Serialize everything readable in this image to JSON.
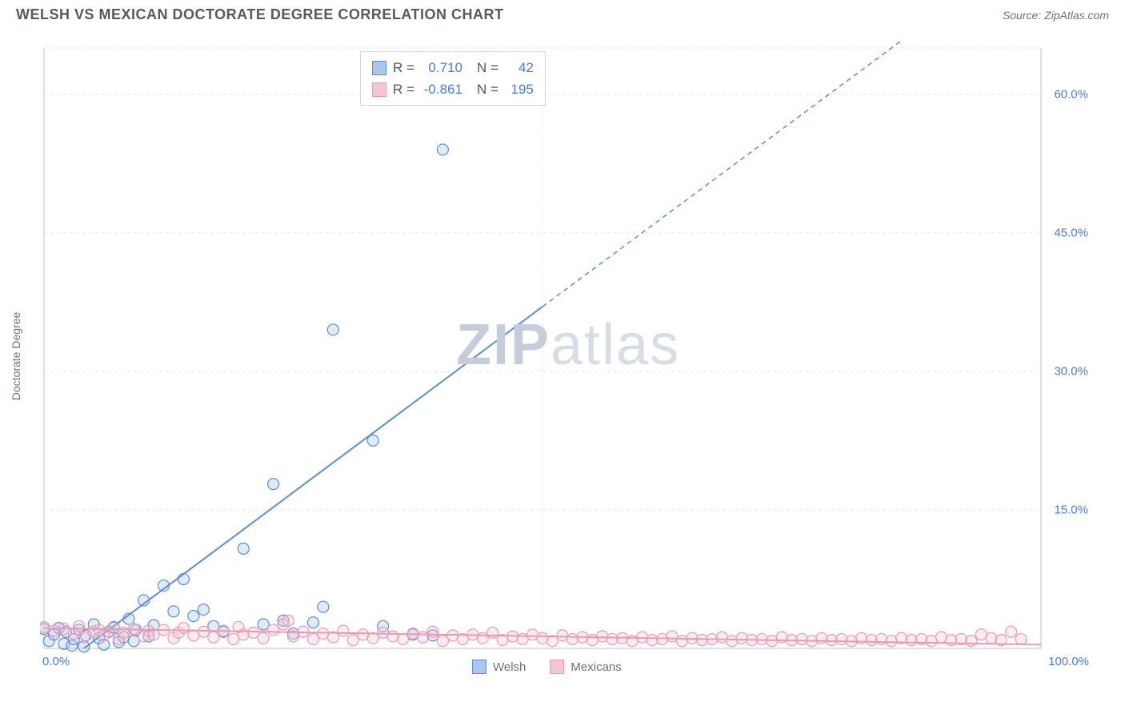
{
  "title": "WELSH VS MEXICAN DOCTORATE DEGREE CORRELATION CHART",
  "source": "Source: ZipAtlas.com",
  "y_axis_label": "Doctorate Degree",
  "watermark": {
    "zip": "ZIP",
    "atlas": "atlas"
  },
  "chart": {
    "type": "scatter",
    "xlim": [
      0,
      100
    ],
    "ylim": [
      0,
      65
    ],
    "xtick_labels": [
      {
        "pos": 0,
        "label": "0.0%"
      },
      {
        "pos": 100,
        "label": "100.0%"
      }
    ],
    "ytick_labels": [
      {
        "pos": 15,
        "label": "15.0%"
      },
      {
        "pos": 30,
        "label": "30.0%"
      },
      {
        "pos": 45,
        "label": "45.0%"
      },
      {
        "pos": 60,
        "label": "60.0%"
      }
    ],
    "grid_color": "#e5e7eb",
    "grid_dash": "4 4",
    "axis_color": "#c0c0c0",
    "background_color": "#ffffff",
    "marker_radius": 7,
    "marker_fill_opacity": 0.35,
    "marker_stroke_width": 1.2,
    "series": [
      {
        "name": "Welsh",
        "color": "#5b8dd6",
        "fill_color": "#a9c6ec",
        "R": "0.710",
        "N": "42",
        "trend": {
          "x1": 4,
          "y1": 0,
          "x2": 50,
          "y2": 37,
          "dash_from_x": 50,
          "dash_to_x": 100,
          "dash_to_y": 77
        },
        "points": [
          [
            0,
            2.1
          ],
          [
            0.5,
            0.8
          ],
          [
            1,
            1.5
          ],
          [
            1.5,
            2.2
          ],
          [
            2,
            0.5
          ],
          [
            2.2,
            1.8
          ],
          [
            2.8,
            0.3
          ],
          [
            3,
            1.0
          ],
          [
            3.5,
            2.0
          ],
          [
            4,
            0.2
          ],
          [
            4.2,
            1.4
          ],
          [
            5,
            2.6
          ],
          [
            5.5,
            1.1
          ],
          [
            6,
            0.4
          ],
          [
            6.5,
            1.8
          ],
          [
            7,
            2.3
          ],
          [
            7.5,
            0.7
          ],
          [
            8,
            1.2
          ],
          [
            8.5,
            3.2
          ],
          [
            9,
            0.8
          ],
          [
            9.2,
            2.0
          ],
          [
            10,
            5.2
          ],
          [
            10.5,
            1.3
          ],
          [
            11,
            2.5
          ],
          [
            12,
            6.8
          ],
          [
            13,
            4.0
          ],
          [
            14,
            7.5
          ],
          [
            15,
            3.5
          ],
          [
            16,
            4.2
          ],
          [
            17,
            2.4
          ],
          [
            18,
            1.8
          ],
          [
            20,
            10.8
          ],
          [
            22,
            2.6
          ],
          [
            23,
            17.8
          ],
          [
            24,
            3.0
          ],
          [
            25,
            1.6
          ],
          [
            27,
            2.8
          ],
          [
            28,
            4.5
          ],
          [
            29,
            34.5
          ],
          [
            33,
            22.5
          ],
          [
            34,
            2.4
          ],
          [
            37,
            1.5
          ],
          [
            39,
            1.4
          ],
          [
            40,
            54.0
          ]
        ]
      },
      {
        "name": "Mexicans",
        "color": "#e89bb0",
        "fill_color": "#f7c6d3",
        "R": "-0.861",
        "N": "195",
        "trend": {
          "x1": 0,
          "y1": 2.2,
          "x2": 100,
          "y2": 0.4
        },
        "points": [
          [
            0,
            2.3
          ],
          [
            1,
            1.9
          ],
          [
            2,
            2.1
          ],
          [
            3,
            1.6
          ],
          [
            3.5,
            2.4
          ],
          [
            4,
            1.2
          ],
          [
            5,
            1.8
          ],
          [
            5.5,
            2.0
          ],
          [
            6,
            1.4
          ],
          [
            7,
            2.2
          ],
          [
            7.5,
            1.0
          ],
          [
            8,
            1.7
          ],
          [
            9,
            2.1
          ],
          [
            10,
            1.3
          ],
          [
            10.5,
            1.9
          ],
          [
            11,
            1.5
          ],
          [
            12,
            2.0
          ],
          [
            13,
            1.1
          ],
          [
            13.5,
            1.7
          ],
          [
            14,
            2.2
          ],
          [
            15,
            1.4
          ],
          [
            16,
            1.8
          ],
          [
            17,
            1.2
          ],
          [
            18,
            1.9
          ],
          [
            19,
            1.0
          ],
          [
            19.5,
            2.3
          ],
          [
            20,
            1.5
          ],
          [
            21,
            1.7
          ],
          [
            22,
            1.1
          ],
          [
            23,
            2.0
          ],
          [
            24,
            2.6
          ],
          [
            24.5,
            3.0
          ],
          [
            25,
            1.3
          ],
          [
            26,
            1.8
          ],
          [
            27,
            1.0
          ],
          [
            28,
            1.6
          ],
          [
            29,
            1.2
          ],
          [
            30,
            1.9
          ],
          [
            31,
            0.9
          ],
          [
            32,
            1.5
          ],
          [
            33,
            1.1
          ],
          [
            34,
            1.7
          ],
          [
            35,
            1.3
          ],
          [
            36,
            1.0
          ],
          [
            37,
            1.6
          ],
          [
            38,
            1.2
          ],
          [
            39,
            1.8
          ],
          [
            40,
            0.8
          ],
          [
            41,
            1.4
          ],
          [
            42,
            1.0
          ],
          [
            43,
            1.5
          ],
          [
            44,
            1.1
          ],
          [
            45,
            1.7
          ],
          [
            46,
            0.9
          ],
          [
            47,
            1.3
          ],
          [
            48,
            1.0
          ],
          [
            49,
            1.5
          ],
          [
            50,
            1.1
          ],
          [
            51,
            0.8
          ],
          [
            52,
            1.4
          ],
          [
            53,
            1.0
          ],
          [
            54,
            1.2
          ],
          [
            55,
            0.9
          ],
          [
            56,
            1.3
          ],
          [
            57,
            1.0
          ],
          [
            58,
            1.1
          ],
          [
            59,
            0.8
          ],
          [
            60,
            1.2
          ],
          [
            61,
            0.9
          ],
          [
            62,
            1.0
          ],
          [
            63,
            1.3
          ],
          [
            64,
            0.8
          ],
          [
            65,
            1.1
          ],
          [
            66,
            0.9
          ],
          [
            67,
            1.0
          ],
          [
            68,
            1.2
          ],
          [
            69,
            0.8
          ],
          [
            70,
            1.1
          ],
          [
            71,
            0.9
          ],
          [
            72,
            1.0
          ],
          [
            73,
            0.8
          ],
          [
            74,
            1.2
          ],
          [
            75,
            0.9
          ],
          [
            76,
            1.0
          ],
          [
            77,
            0.8
          ],
          [
            78,
            1.1
          ],
          [
            79,
            0.9
          ],
          [
            80,
            1.0
          ],
          [
            81,
            0.8
          ],
          [
            82,
            1.1
          ],
          [
            83,
            0.9
          ],
          [
            84,
            1.0
          ],
          [
            85,
            0.8
          ],
          [
            86,
            1.1
          ],
          [
            87,
            0.9
          ],
          [
            88,
            1.0
          ],
          [
            89,
            0.8
          ],
          [
            90,
            1.2
          ],
          [
            91,
            0.9
          ],
          [
            92,
            1.0
          ],
          [
            93,
            0.8
          ],
          [
            94,
            1.5
          ],
          [
            95,
            1.1
          ],
          [
            96,
            0.9
          ],
          [
            97,
            1.8
          ],
          [
            98,
            1.0
          ]
        ]
      }
    ]
  },
  "bottom_legend": [
    {
      "label": "Welsh",
      "fill": "#a9c6ec",
      "stroke": "#5b8dd6"
    },
    {
      "label": "Mexicans",
      "fill": "#f7c6d3",
      "stroke": "#e89bb0"
    }
  ]
}
